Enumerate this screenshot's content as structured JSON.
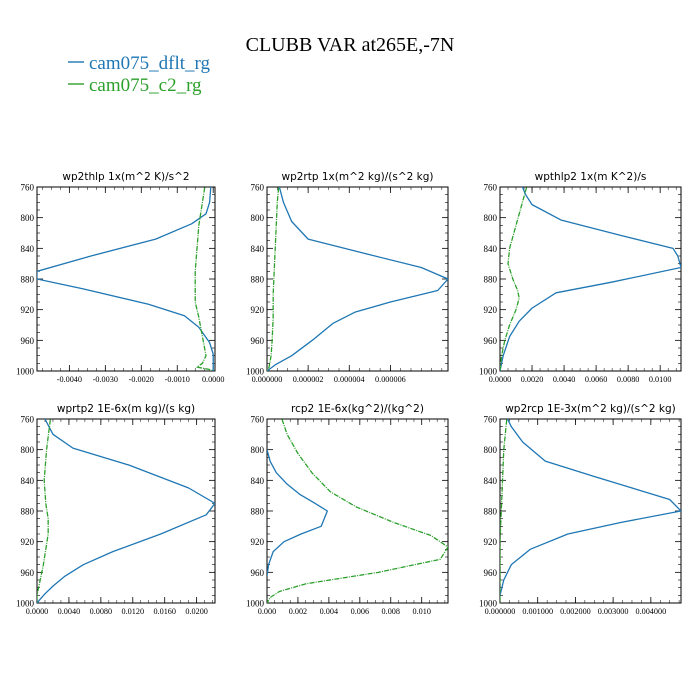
{
  "title": "CLUBB VAR at265E,-7N",
  "legend": [
    {
      "name": "cam075_dflt_rg",
      "color": "#1f77b4"
    },
    {
      "name": "cam075_c2_rg",
      "color": "#2ca02c"
    }
  ],
  "chart_data": [
    {
      "type": "line",
      "title": "wp2thlp   1x(m^2 K)/s^2",
      "xlim": [
        -0.0049,
        5e-05
      ],
      "ylim": [
        760,
        1000
      ],
      "y_inverted": true,
      "xticks": [
        -0.004,
        -0.003,
        -0.002,
        -0.001,
        0.0
      ],
      "xtick_labels": [
        "-0.0040",
        "-0.0030",
        "-0.0020",
        "-0.0010",
        "0.0000"
      ],
      "yticks": [
        760,
        800,
        840,
        880,
        920,
        960,
        1000
      ],
      "series": [
        {
          "name": "cam075_dflt_rg",
          "x": [
            -5e-05,
            -0.0001,
            -0.0002,
            -0.0006,
            -0.0016,
            -0.0034,
            -0.0049,
            -0.0049,
            -0.0036,
            -0.0018,
            -0.0008,
            -0.0004,
            -0.0001,
            0.0,
            0.0,
            0.0
          ],
          "y": [
            750,
            780,
            795,
            808,
            828,
            850,
            870,
            880,
            893,
            913,
            928,
            943,
            963,
            978,
            990,
            1000
          ]
        },
        {
          "name": "cam075_c2_rg",
          "x": [
            -0.0002,
            -0.0003,
            -0.0004,
            -0.00045,
            -0.0005,
            -0.0005,
            -0.0005,
            -0.0004,
            -0.0003,
            -0.0002,
            -0.0003,
            -0.00045,
            -0.0001,
            0.0
          ],
          "y": [
            750,
            780,
            810,
            840,
            870,
            890,
            910,
            930,
            955,
            980,
            990,
            995,
            998,
            1000
          ]
        }
      ]
    },
    {
      "type": "line",
      "title": "wp2rtp   1x(m^2 kg)/(s^2 kg)",
      "xlim": [
        0.0,
        8.8e-06
      ],
      "ylim": [
        760,
        1000
      ],
      "y_inverted": true,
      "xticks": [
        0.0,
        2e-06,
        4e-06,
        6e-06
      ],
      "xtick_labels": [
        "0.000000",
        "0.000002",
        "0.000004",
        "0.000006"
      ],
      "yticks": [
        760,
        800,
        840,
        880,
        920,
        960,
        1000
      ],
      "series": [
        {
          "name": "cam075_dflt_rg",
          "x": [
            5e-07,
            8e-07,
            1.2e-06,
            2e-06,
            4.5e-06,
            7.5e-06,
            8.8e-06,
            8.3e-06,
            6e-06,
            4.3e-06,
            3.2e-06,
            2.2e-06,
            1.2e-06,
            4e-07,
            0.0
          ],
          "y": [
            750,
            780,
            805,
            828,
            845,
            865,
            880,
            895,
            910,
            923,
            938,
            960,
            980,
            992,
            1000
          ]
        },
        {
          "name": "cam075_c2_rg",
          "x": [
            6e-07,
            5e-07,
            4.5e-07,
            4e-07,
            3.5e-07,
            3e-07,
            3e-07,
            2.5e-07,
            2e-07,
            1e-07,
            0.0
          ],
          "y": [
            750,
            780,
            810,
            840,
            870,
            900,
            930,
            960,
            980,
            995,
            1000
          ]
        }
      ]
    },
    {
      "type": "line",
      "title": "wpthlp2   1x(m K^2)/s",
      "xlim": [
        0.0,
        0.0113
      ],
      "ylim": [
        760,
        1000
      ],
      "y_inverted": true,
      "xticks": [
        0.0,
        0.002,
        0.004,
        0.006,
        0.008,
        0.01
      ],
      "xtick_labels": [
        "0.0000",
        "0.0020",
        "0.0040",
        "0.0060",
        "0.0080",
        "0.0100"
      ],
      "yticks": [
        760,
        800,
        840,
        880,
        920,
        960,
        1000
      ],
      "series": [
        {
          "name": "cam075_dflt_rg",
          "x": [
            0.0012,
            0.0016,
            0.002,
            0.0038,
            0.0075,
            0.0108,
            0.0111,
            0.0113,
            0.007,
            0.0035,
            0.002,
            0.0012,
            0.0006,
            0.0002,
            0.0
          ],
          "y": [
            750,
            770,
            783,
            803,
            823,
            840,
            850,
            865,
            884,
            898,
            918,
            935,
            955,
            980,
            1000
          ]
        },
        {
          "name": "cam075_c2_rg",
          "x": [
            0.0018,
            0.0014,
            0.001,
            0.0006,
            0.0005,
            0.0008,
            0.0011,
            0.0012,
            0.001,
            0.0006,
            0.0003,
            0.0001,
            0.0
          ],
          "y": [
            750,
            780,
            810,
            840,
            860,
            880,
            895,
            905,
            920,
            940,
            960,
            980,
            1000
          ]
        }
      ]
    },
    {
      "type": "line",
      "title": "wprtp2   1E-6x(m kg)/(s kg)",
      "xlim": [
        0.0,
        0.0223
      ],
      "ylim": [
        760,
        1000
      ],
      "y_inverted": true,
      "xticks": [
        0.0,
        0.004,
        0.008,
        0.012,
        0.016,
        0.02
      ],
      "xtick_labels": [
        "0.0000",
        "0.0040",
        "0.0080",
        "0.0120",
        "0.0160",
        "0.0200"
      ],
      "yticks": [
        760,
        800,
        840,
        880,
        920,
        960,
        1000
      ],
      "series": [
        {
          "name": "cam075_dflt_rg",
          "x": [
            0.0005,
            0.002,
            0.0045,
            0.0115,
            0.019,
            0.0223,
            0.0212,
            0.0155,
            0.0095,
            0.0058,
            0.0035,
            0.002,
            0.001,
            0.0004,
            0.0
          ],
          "y": [
            750,
            780,
            798,
            820,
            850,
            870,
            885,
            910,
            933,
            950,
            965,
            978,
            988,
            995,
            1000
          ]
        },
        {
          "name": "cam075_c2_rg",
          "x": [
            0.0018,
            0.0012,
            0.0009,
            0.0011,
            0.0014,
            0.0014,
            0.0011,
            0.0008,
            0.0004,
            0.0,
            0.0
          ],
          "y": [
            750,
            800,
            840,
            870,
            890,
            910,
            930,
            950,
            970,
            990,
            1000
          ]
        }
      ]
    },
    {
      "type": "line",
      "title": "rcp2   1E-6x(kg^2)/(kg^2)",
      "xlim": [
        0.0,
        0.0117
      ],
      "ylim": [
        760,
        1000
      ],
      "y_inverted": true,
      "xticks": [
        0.0,
        0.002,
        0.004,
        0.006,
        0.008,
        0.01
      ],
      "xtick_labels": [
        "0.000",
        "0.002",
        "0.004",
        "0.006",
        "0.008",
        "0.010"
      ],
      "yticks": [
        760,
        800,
        840,
        880,
        920,
        960,
        1000
      ],
      "series": [
        {
          "name": "cam075_dflt_rg",
          "x": [
            0.0,
            0.0002,
            0.0006,
            0.0013,
            0.0021,
            0.0031,
            0.0039,
            0.0035,
            0.0022,
            0.0011,
            0.0004,
            0.0001,
            0.0
          ],
          "y": [
            800,
            815,
            830,
            845,
            858,
            870,
            880,
            900,
            910,
            920,
            933,
            950,
            965
          ]
        },
        {
          "name": "cam075_c2_rg",
          "x": [
            0.0008,
            0.0013,
            0.002,
            0.0029,
            0.0041,
            0.0058,
            0.0082,
            0.0106,
            0.0117,
            0.0112,
            0.0072,
            0.0025,
            0.0008,
            0.0002,
            0.0
          ],
          "y": [
            750,
            780,
            805,
            830,
            855,
            875,
            895,
            912,
            927,
            943,
            960,
            975,
            985,
            993,
            1000
          ]
        }
      ]
    },
    {
      "type": "line",
      "title": "wp2rcp   1E-3x(m^2 kg)/(s^2 kg)",
      "xlim": [
        0.0,
        0.0048
      ],
      "ylim": [
        760,
        1000
      ],
      "y_inverted": true,
      "xticks": [
        0.0,
        0.001,
        0.002,
        0.003,
        0.004
      ],
      "xtick_labels": [
        "0.000000",
        "0.001000",
        "0.002000",
        "0.003000",
        "0.004000"
      ],
      "yticks": [
        760,
        800,
        840,
        880,
        920,
        960,
        1000
      ],
      "series": [
        {
          "name": "cam075_dflt_rg",
          "x": [
            0.0001,
            0.0003,
            0.0006,
            0.0012,
            0.0025,
            0.0045,
            0.0048,
            0.0032,
            0.0018,
            0.0008,
            0.0003,
            0.0001,
            0.0
          ],
          "y": [
            750,
            770,
            790,
            815,
            835,
            865,
            880,
            895,
            910,
            930,
            950,
            970,
            990
          ]
        },
        {
          "name": "cam075_c2_rg",
          "x": [
            0.0002,
            0.0001,
            5e-05,
            0.0,
            0.0
          ],
          "y": [
            750,
            800,
            860,
            920,
            1000
          ]
        }
      ]
    }
  ]
}
